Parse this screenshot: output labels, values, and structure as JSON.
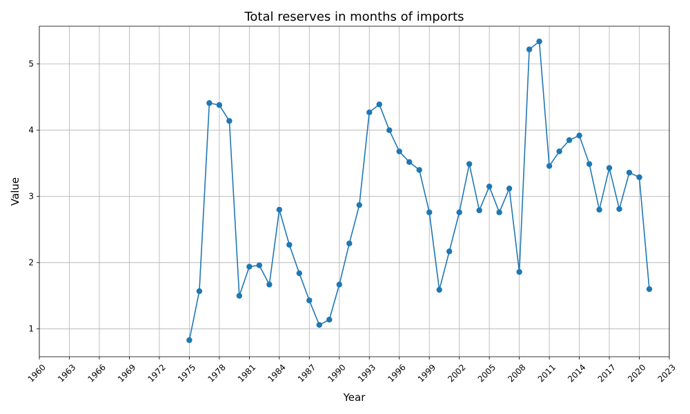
{
  "chart_data": {
    "type": "line",
    "title": "Total reserves in months of imports",
    "xlabel": "Year",
    "ylabel": "Value",
    "xlim": [
      1960,
      2023
    ],
    "ylim": [
      0.58,
      5.57
    ],
    "x_ticks": [
      1960,
      1963,
      1966,
      1969,
      1972,
      1975,
      1978,
      1981,
      1984,
      1987,
      1990,
      1993,
      1996,
      1999,
      2002,
      2005,
      2008,
      2011,
      2014,
      2017,
      2020,
      2023
    ],
    "y_ticks": [
      1,
      2,
      3,
      4,
      5
    ],
    "grid": true,
    "marker": "circle",
    "color": "#1f77b4",
    "series": [
      {
        "x": [
          1975,
          1976,
          1977,
          1978,
          1979,
          1980,
          1981,
          1982,
          1983,
          1984,
          1985,
          1986,
          1987,
          1988,
          1989,
          1990,
          1991,
          1992,
          1993,
          1994,
          1995,
          1996,
          1997,
          1998,
          1999,
          2000,
          2001,
          2002,
          2003,
          2004,
          2005,
          2006,
          2007,
          2008,
          2009,
          2010,
          2011,
          2012,
          2013,
          2014,
          2015,
          2016,
          2017,
          2018,
          2019,
          2020,
          2021
        ],
        "values": [
          0.83,
          1.57,
          4.41,
          4.38,
          4.14,
          1.5,
          1.94,
          1.96,
          1.67,
          2.8,
          2.27,
          1.84,
          1.43,
          1.06,
          1.14,
          1.67,
          2.29,
          2.87,
          4.27,
          4.39,
          4.0,
          3.68,
          3.52,
          3.4,
          2.76,
          1.59,
          2.17,
          2.76,
          3.49,
          2.79,
          3.15,
          2.76,
          3.12,
          1.86,
          5.22,
          5.34,
          3.46,
          3.68,
          3.85,
          3.92,
          3.49,
          2.8,
          3.43,
          2.81,
          3.36,
          3.29,
          1.6
        ]
      }
    ]
  }
}
